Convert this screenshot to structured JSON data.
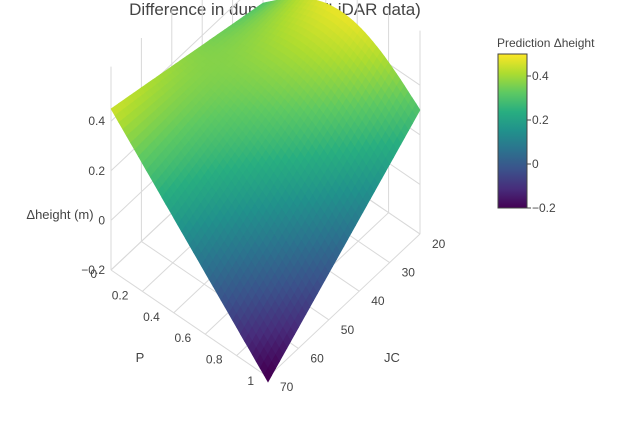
{
  "chart_data": {
    "type": "surface",
    "title": "Difference in dune height (LiDAR data)",
    "axes": {
      "x": {
        "label": "P",
        "range": [
          0,
          1
        ],
        "ticks": [
          "0",
          "0.2",
          "0.4",
          "0.6",
          "0.8",
          "1"
        ]
      },
      "y": {
        "label": "JC",
        "range": [
          20,
          70
        ],
        "ticks": [
          "20",
          "30",
          "40",
          "50",
          "60",
          "70"
        ]
      },
      "z": {
        "label": "Δheight (m)",
        "range": [
          -0.2,
          0.5
        ],
        "ticks": [
          "−0.2",
          "0",
          "0.2",
          "0.4"
        ]
      }
    },
    "corner_values": [
      {
        "P": 0,
        "JC": 20,
        "dheight": 0.3
      },
      {
        "P": 0,
        "JC": 70,
        "dheight": 0.45
      },
      {
        "P": 1,
        "JC": 20,
        "dheight": 0.3
      },
      {
        "P": 1,
        "JC": 70,
        "dheight": -0.22
      }
    ],
    "surface_peak": {
      "P": 0.5,
      "JC": 20,
      "dheight": 0.5
    },
    "colorbar": {
      "title": "Prediction Δheight",
      "ticks": [
        "0.4",
        "0.2",
        "0",
        "−0.2"
      ],
      "colorscale": "viridis",
      "range": [
        -0.2,
        0.5
      ]
    },
    "grid": true
  }
}
